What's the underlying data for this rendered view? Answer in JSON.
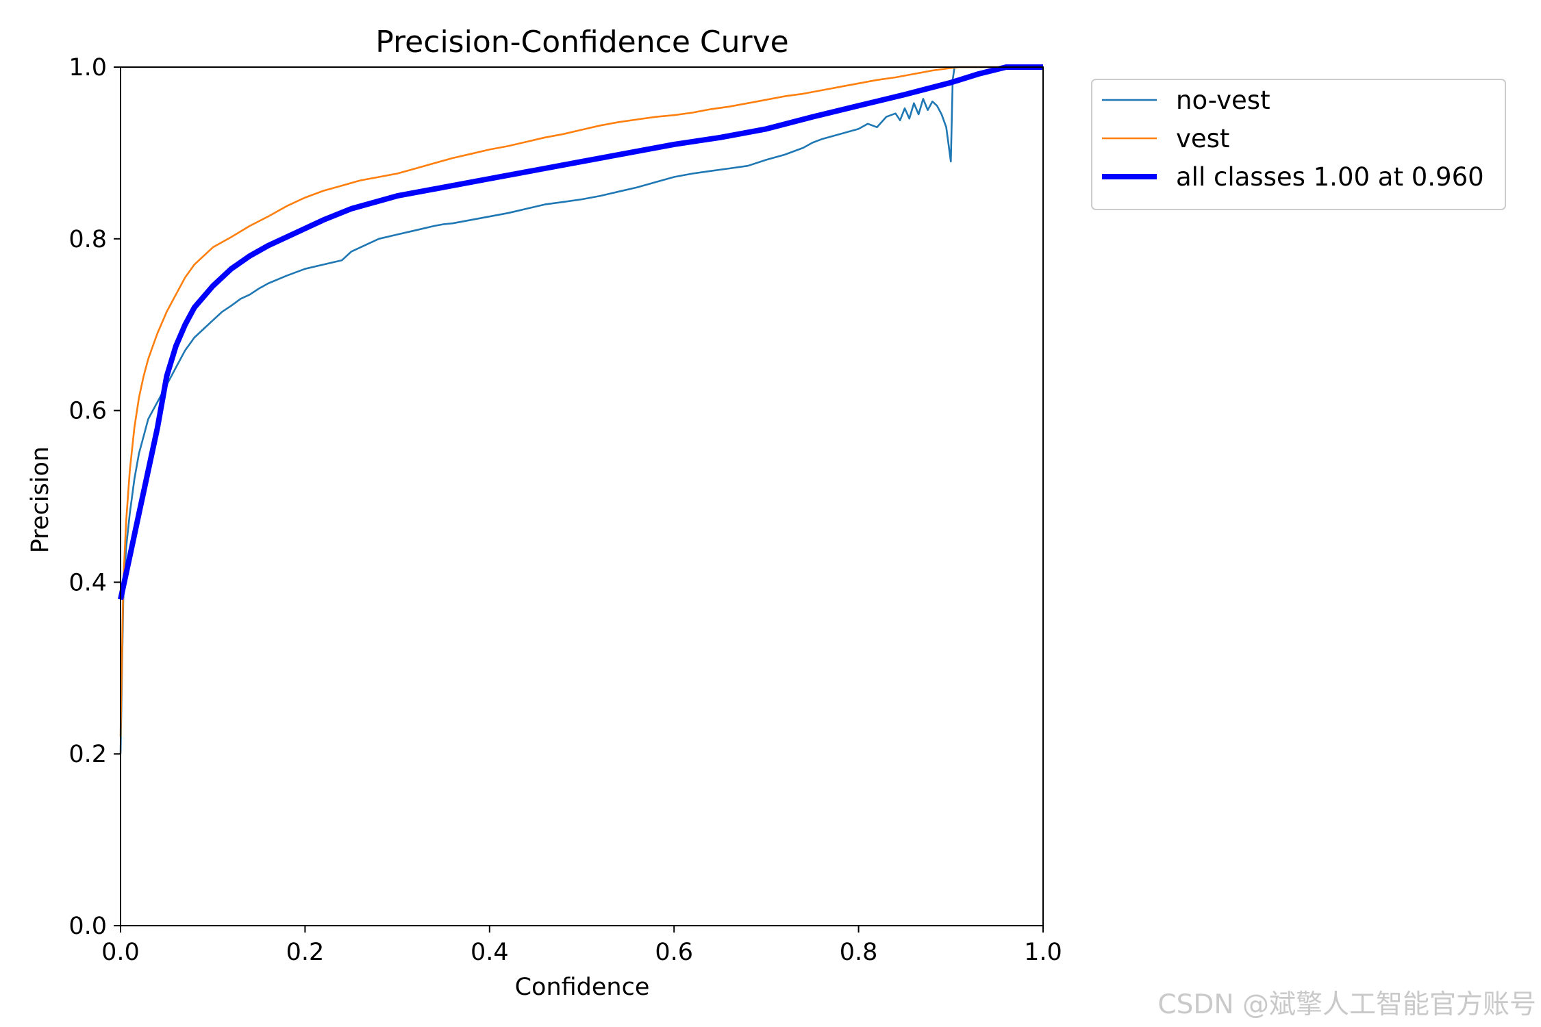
{
  "chart_data": {
    "type": "line",
    "title": "Precision-Confidence Curve",
    "xlabel": "Confidence",
    "ylabel": "Precision",
    "xlim": [
      0,
      1
    ],
    "ylim": [
      0,
      1
    ],
    "xticks": [
      "0.0",
      "0.2",
      "0.4",
      "0.6",
      "0.8",
      "1.0"
    ],
    "yticks": [
      "0.0",
      "0.2",
      "0.4",
      "0.6",
      "0.8",
      "1.0"
    ],
    "grid": false,
    "legend_position": "outside-top-right",
    "series": [
      {
        "name": "no-vest",
        "color": "#1f77b4",
        "width": "thin",
        "x": [
          0.0,
          0.003,
          0.006,
          0.01,
          0.015,
          0.02,
          0.025,
          0.03,
          0.035,
          0.04,
          0.05,
          0.06,
          0.07,
          0.08,
          0.09,
          0.1,
          0.11,
          0.12,
          0.13,
          0.14,
          0.15,
          0.16,
          0.18,
          0.2,
          0.22,
          0.24,
          0.25,
          0.26,
          0.28,
          0.3,
          0.32,
          0.34,
          0.35,
          0.36,
          0.38,
          0.4,
          0.42,
          0.44,
          0.46,
          0.48,
          0.5,
          0.52,
          0.54,
          0.56,
          0.58,
          0.6,
          0.62,
          0.64,
          0.66,
          0.68,
          0.7,
          0.72,
          0.74,
          0.75,
          0.76,
          0.78,
          0.8,
          0.81,
          0.82,
          0.83,
          0.84,
          0.845,
          0.85,
          0.855,
          0.86,
          0.865,
          0.87,
          0.875,
          0.88,
          0.885,
          0.89,
          0.895,
          0.9,
          0.902,
          0.904,
          0.906,
          0.91,
          0.95,
          1.0
        ],
        "y": [
          0.2,
          0.38,
          0.44,
          0.48,
          0.52,
          0.55,
          0.57,
          0.59,
          0.6,
          0.61,
          0.63,
          0.65,
          0.67,
          0.685,
          0.695,
          0.705,
          0.715,
          0.722,
          0.73,
          0.735,
          0.742,
          0.748,
          0.757,
          0.765,
          0.77,
          0.775,
          0.785,
          0.79,
          0.8,
          0.805,
          0.81,
          0.815,
          0.817,
          0.818,
          0.822,
          0.826,
          0.83,
          0.835,
          0.84,
          0.843,
          0.846,
          0.85,
          0.855,
          0.86,
          0.866,
          0.872,
          0.876,
          0.879,
          0.882,
          0.885,
          0.892,
          0.898,
          0.906,
          0.912,
          0.916,
          0.922,
          0.928,
          0.934,
          0.93,
          0.942,
          0.946,
          0.938,
          0.952,
          0.94,
          0.958,
          0.945,
          0.963,
          0.95,
          0.96,
          0.955,
          0.945,
          0.93,
          0.89,
          0.985,
          1.0,
          1.0,
          1.0,
          1.0,
          1.0
        ]
      },
      {
        "name": "vest",
        "color": "#ff7f0e",
        "width": "thin",
        "x": [
          0.0,
          0.003,
          0.006,
          0.01,
          0.015,
          0.02,
          0.025,
          0.03,
          0.035,
          0.04,
          0.05,
          0.06,
          0.07,
          0.08,
          0.09,
          0.1,
          0.12,
          0.14,
          0.16,
          0.18,
          0.2,
          0.22,
          0.24,
          0.26,
          0.28,
          0.3,
          0.32,
          0.34,
          0.36,
          0.38,
          0.4,
          0.42,
          0.44,
          0.46,
          0.48,
          0.5,
          0.52,
          0.54,
          0.56,
          0.58,
          0.6,
          0.62,
          0.64,
          0.66,
          0.68,
          0.7,
          0.72,
          0.74,
          0.76,
          0.78,
          0.8,
          0.82,
          0.84,
          0.86,
          0.88,
          0.9,
          0.91,
          0.95,
          1.0
        ],
        "y": [
          0.22,
          0.4,
          0.47,
          0.53,
          0.58,
          0.615,
          0.64,
          0.66,
          0.675,
          0.69,
          0.715,
          0.735,
          0.755,
          0.77,
          0.78,
          0.79,
          0.802,
          0.815,
          0.826,
          0.838,
          0.848,
          0.856,
          0.862,
          0.868,
          0.872,
          0.876,
          0.882,
          0.888,
          0.894,
          0.899,
          0.904,
          0.908,
          0.913,
          0.918,
          0.922,
          0.927,
          0.932,
          0.936,
          0.939,
          0.942,
          0.944,
          0.947,
          0.951,
          0.954,
          0.958,
          0.962,
          0.966,
          0.969,
          0.973,
          0.977,
          0.981,
          0.985,
          0.988,
          0.992,
          0.996,
          0.999,
          1.0,
          1.0,
          1.0
        ]
      },
      {
        "name": "all classes 1.00 at 0.960",
        "color": "#0000ff",
        "width": "thick",
        "x": [
          0.0,
          0.01,
          0.02,
          0.03,
          0.04,
          0.05,
          0.06,
          0.07,
          0.08,
          0.1,
          0.12,
          0.14,
          0.16,
          0.18,
          0.2,
          0.22,
          0.25,
          0.3,
          0.35,
          0.4,
          0.45,
          0.5,
          0.55,
          0.6,
          0.65,
          0.7,
          0.75,
          0.8,
          0.85,
          0.9,
          0.93,
          0.96,
          1.0
        ],
        "y": [
          0.38,
          0.43,
          0.48,
          0.53,
          0.58,
          0.64,
          0.675,
          0.7,
          0.72,
          0.745,
          0.765,
          0.78,
          0.792,
          0.802,
          0.812,
          0.822,
          0.835,
          0.85,
          0.86,
          0.87,
          0.88,
          0.89,
          0.9,
          0.91,
          0.918,
          0.928,
          0.942,
          0.955,
          0.968,
          0.982,
          0.992,
          1.0,
          1.0
        ]
      }
    ]
  },
  "watermark": "CSDN @斌擎人工智能官方账号"
}
